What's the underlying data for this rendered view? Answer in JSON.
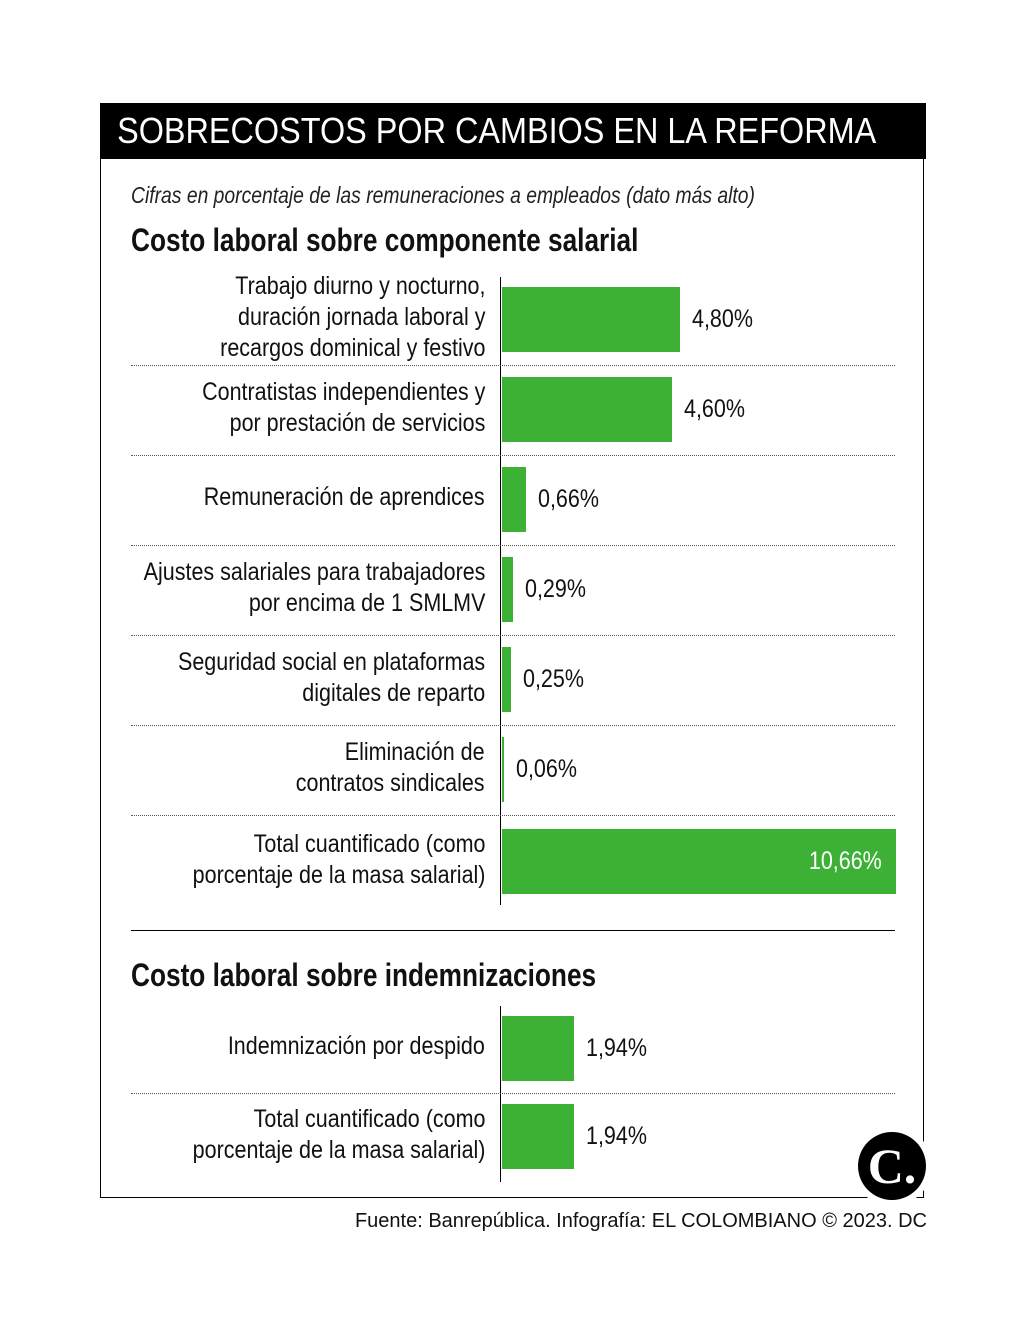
{
  "title": "SOBRECOSTOS POR CAMBIOS EN LA REFORMA",
  "subtitle": "Cifras en porcentaje de las remuneraciones a empleados (dato más alto)",
  "source": "Fuente: Banrepública. Infografía: EL COLOMBIANO © 2023. DC",
  "logo_text": "C.",
  "colors": {
    "bar": "#3db135",
    "header": "#000000"
  },
  "chart_data": [
    {
      "type": "bar",
      "orientation": "horizontal",
      "title": "Costo laboral sobre componente salarial",
      "unit": "%",
      "categories": [
        "Trabajo diurno y nocturno,\nduración jornada laboral y\nrecargos dominical y festivo",
        "Contratistas independientes y\npor prestación de servicios",
        "Remuneración de aprendices",
        "Ajustes salariales para trabajadores\npor encima de 1 SMLMV",
        "Seguridad social en plataformas\ndigitales de reparto",
        "Eliminación de\ncontratos sindicales",
        "Total cuantificado (como\nporcentaje de la masa salarial)"
      ],
      "values": [
        4.8,
        4.6,
        0.66,
        0.29,
        0.25,
        0.06,
        10.66
      ],
      "labels": [
        "4,80%",
        "4,60%",
        "0,66%",
        "0,29%",
        "0,25%",
        "0,06%",
        "10,66%"
      ]
    },
    {
      "type": "bar",
      "orientation": "horizontal",
      "title": "Costo laboral sobre indemnizaciones",
      "unit": "%",
      "categories": [
        "Indemnización por despido",
        "Total cuantificado (como\nporcentaje de la masa salarial)"
      ],
      "values": [
        1.94,
        1.94
      ],
      "labels": [
        "1,94%",
        "1,94%"
      ]
    }
  ]
}
